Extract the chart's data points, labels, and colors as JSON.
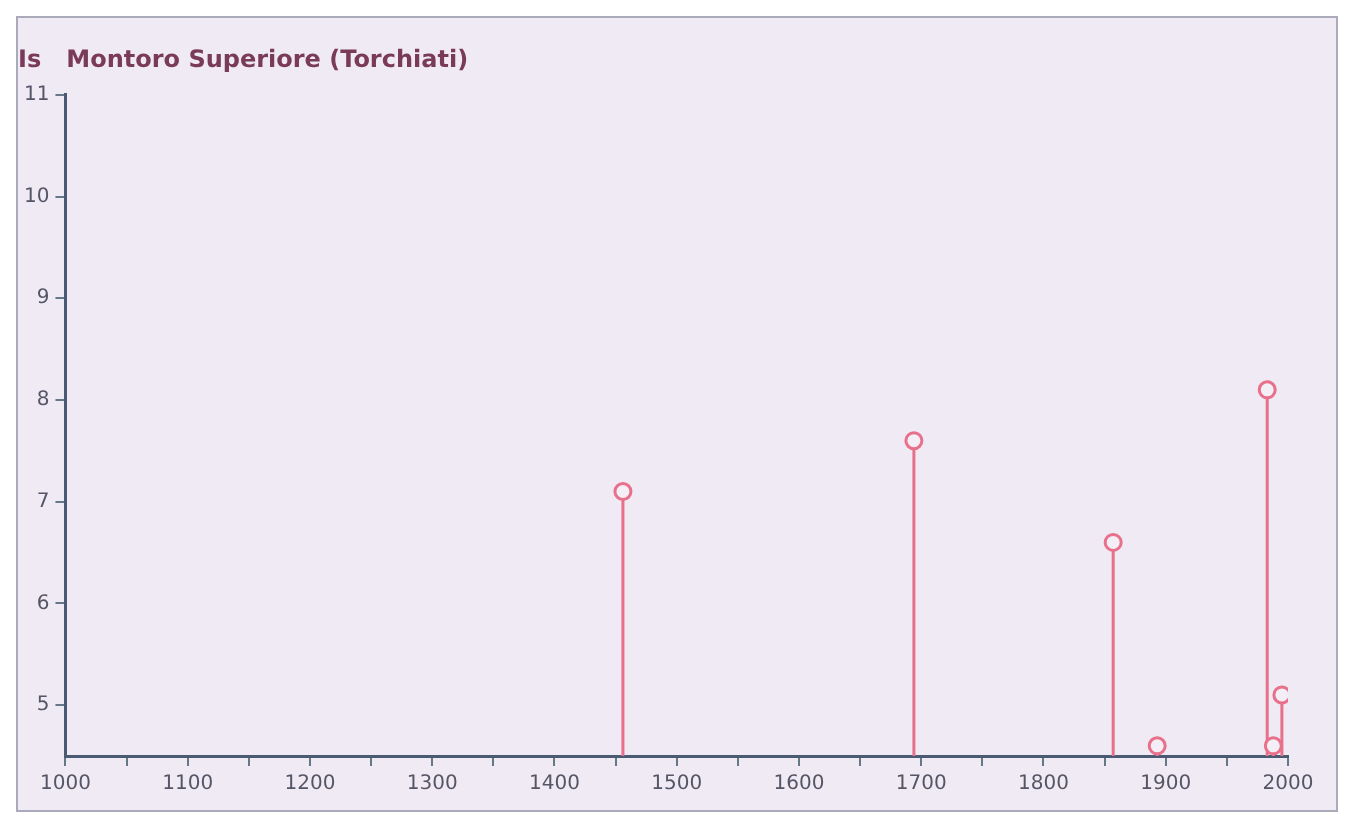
{
  "chart_data": {
    "type": "lollipop",
    "title": "Montoro Superiore (Torchiati)",
    "ylabel": "Is",
    "x": [
      1456,
      1694,
      1857,
      1893,
      1983,
      1988,
      1995
    ],
    "values": [
      7.1,
      7.6,
      6.6,
      4.6,
      8.1,
      4.6,
      5.1
    ],
    "color": "#e8708a",
    "marker": "circle",
    "grid": false,
    "legend": false,
    "xlim": [
      1000,
      2000
    ],
    "ylim": [
      4.5,
      11
    ],
    "xticks": [
      1000,
      {
        "value": 1050,
        "label": null
      },
      1100,
      {
        "value": 1150,
        "label": null
      },
      1200,
      {
        "value": 1250,
        "label": null
      },
      1300,
      {
        "value": 1350,
        "label": null
      },
      1400,
      {
        "value": 1450,
        "label": null
      },
      1500,
      {
        "value": 1550,
        "label": null
      },
      1600,
      {
        "value": 1650,
        "label": null
      },
      1700,
      {
        "value": 1750,
        "label": null
      },
      1800,
      {
        "value": 1850,
        "label": null
      },
      1900,
      {
        "value": 1950,
        "label": null
      },
      2000
    ],
    "yticks": [
      5,
      6,
      7,
      8,
      9,
      10,
      11
    ]
  }
}
